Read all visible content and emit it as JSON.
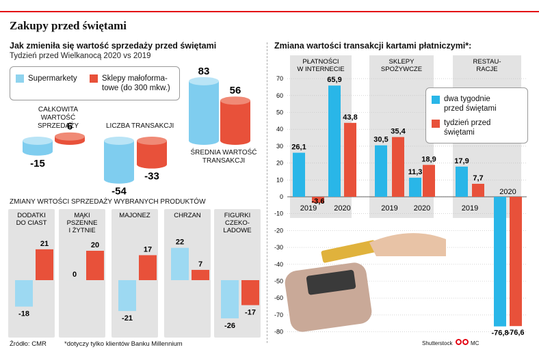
{
  "title": "Zakupy przed świętami",
  "left": {
    "heading": "Jak zmieniła się wartość sprzedaży przed świętami",
    "subheading": "Tydzień przed Wielkanocą 2020 vs 2019",
    "legend": [
      "Supermarkety",
      "Sklepy małoforma-\ntowe (do 300 mkw.)"
    ],
    "metrics": [
      {
        "label": "CAŁKOWITA WARTOŚĆ\nSPRZEDAŻY",
        "supermarket": -15,
        "small": 6
      },
      {
        "label": "LICZBA TRANSAKCJI",
        "supermarket": -54,
        "small": -33
      },
      {
        "label": "ŚREDNIA WARTOŚĆ\nTRANSAKCJI",
        "supermarket": 83,
        "small": 56
      }
    ],
    "products_heading": "ZMIANY WRTOŚCI SPRZEDAŻY WYBRANYCH PRODUKTÓW",
    "products": [
      {
        "label": "DODATKI\nDO CIAST",
        "supermarket": -18,
        "small": 21
      },
      {
        "label": "MĄKI\nPSZENNE\nI ŻYTNIE",
        "supermarket": 0,
        "small": 20
      },
      {
        "label": "MAJONEZ",
        "supermarket": -21,
        "small": 17
      },
      {
        "label": "CHRZAN",
        "supermarket": 22,
        "small": 7
      },
      {
        "label": "FIGURKI\nCZEKO-\nLADOWE",
        "supermarket": -26,
        "small": -17
      }
    ]
  },
  "right": {
    "heading": "Zmiana wartości transakcji kartami płatniczymi*:",
    "groups": [
      "PŁATNOŚCI\nW INTERNECIE",
      "SKLEPY\nSPOŻYWCZE",
      "RESTAU-\nRACJE"
    ],
    "legend": [
      "dwa tygodnie\nprzed świętami",
      "tydzień przed\nświętami"
    ]
  },
  "source": "Źródło:  CMR",
  "footnote": "*dotyczy tylko klientów Banku Millennium",
  "credit": "Shutterstock",
  "credit2": "MC",
  "colors": {
    "blue": "#29b6e8",
    "red": "#e8513a",
    "grey": "#dcdcdc"
  },
  "chart_data": [
    {
      "type": "bar",
      "title": "Jak zmieniła się wartość sprzedaży przed świętami",
      "categories": [
        "CAŁKOWITA WARTOŚĆ SPRZEDAŻY",
        "LICZBA TRANSAKCJI",
        "ŚREDNIA WARTOŚĆ TRANSAKCJI"
      ],
      "series": [
        {
          "name": "Supermarkety",
          "values": [
            -15,
            -54,
            83
          ]
        },
        {
          "name": "Sklepy małoformatowe (do 300 mkw.)",
          "values": [
            6,
            -33,
            56
          ]
        }
      ]
    },
    {
      "type": "bar",
      "title": "ZMIANY WRTOŚCI SPRZEDAŻY WYBRANYCH PRODUKTÓW",
      "categories": [
        "DODATKI DO CIAST",
        "MĄKI PSZENNE I ŻYTNIE",
        "MAJONEZ",
        "CHRZAN",
        "FIGURKI CZEKOLADOWE"
      ],
      "series": [
        {
          "name": "Supermarkety",
          "values": [
            -18,
            0,
            -21,
            22,
            -26
          ]
        },
        {
          "name": "Sklepy małoformatowe (do 300 mkw.)",
          "values": [
            21,
            20,
            17,
            7,
            -17
          ]
        }
      ]
    },
    {
      "type": "bar",
      "title": "Zmiana wartości transakcji kartami płatniczymi*:",
      "categories": [
        "2019",
        "2020",
        "2019",
        "2020",
        "2019",
        "2020"
      ],
      "groups": [
        "PŁATNOŚCI W INTERNECIE",
        "PŁATNOŚCI W INTERNECIE",
        "SKLEPY SPOŻYWCZE",
        "SKLEPY SPOŻYWCZE",
        "RESTAURACJE",
        "RESTAURACJE"
      ],
      "series": [
        {
          "name": "dwa tygodnie przed świętami",
          "values": [
            26.1,
            65.9,
            30.5,
            11.3,
            17.9,
            -76.8
          ]
        },
        {
          "name": "tydzień przed świętami",
          "values": [
            -3.6,
            43.8,
            35.4,
            18.9,
            7.7,
            -76.6
          ]
        }
      ],
      "ylim": [
        -80,
        70
      ],
      "yticks": [
        70,
        60,
        50,
        40,
        30,
        20,
        10,
        0,
        -10,
        -20,
        -30,
        -40,
        -50,
        -60,
        -70,
        -80
      ]
    }
  ]
}
